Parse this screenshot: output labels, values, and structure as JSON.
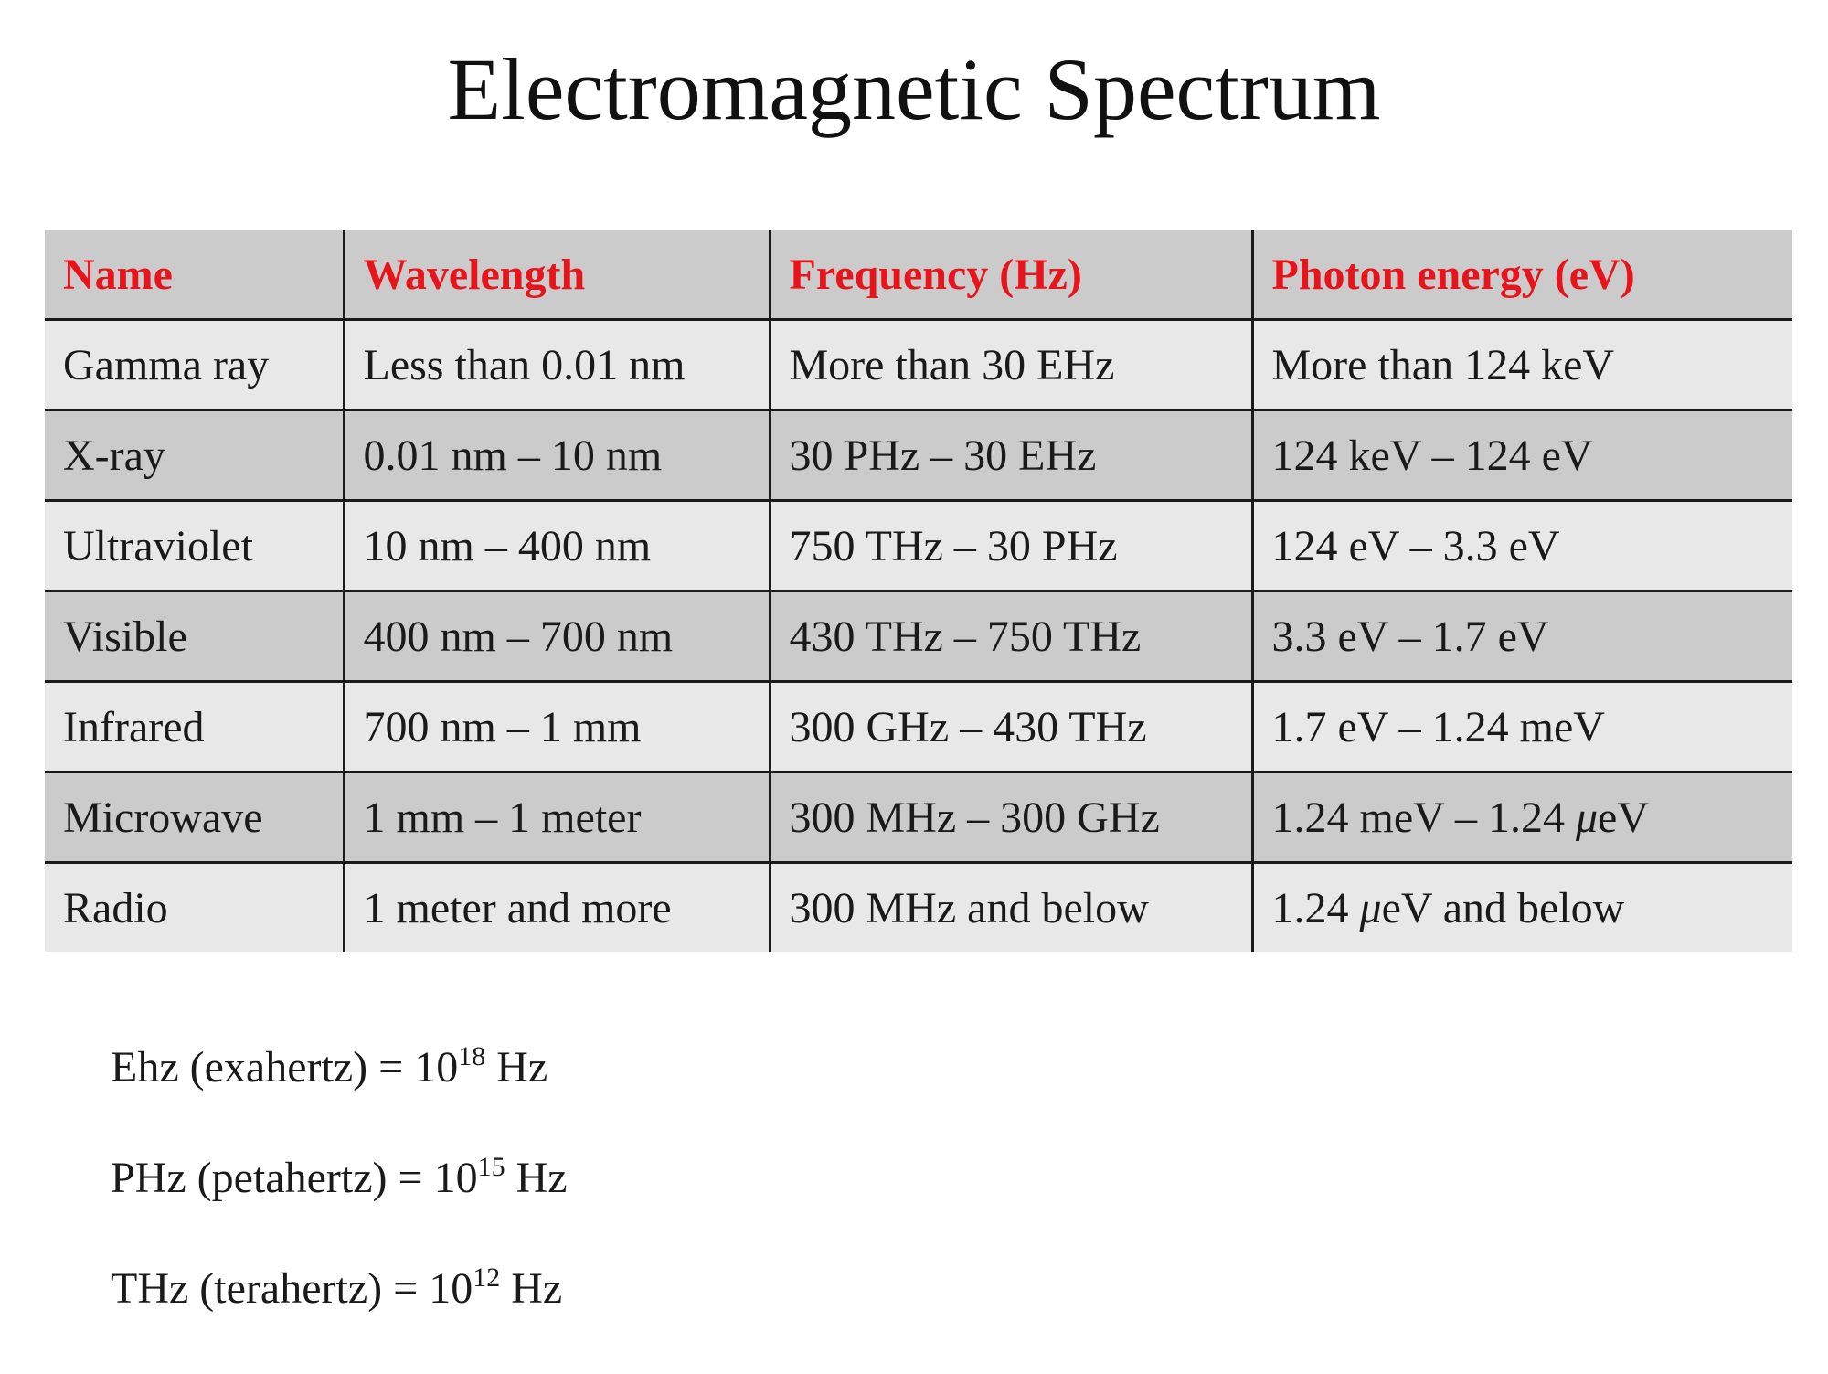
{
  "title": "Electromagnetic Spectrum",
  "table": {
    "headers": [
      "Name",
      "Wavelength",
      "Frequency (Hz)",
      "Photon energy (eV)"
    ],
    "rows": [
      [
        "Gamma ray",
        "Less than 0.01 nm",
        "More than 30 EHz",
        "More than 124 keV"
      ],
      [
        "X-ray",
        "0.01 nm – 10 nm",
        "30 PHz – 30 EHz",
        "124 keV – 124 eV"
      ],
      [
        "Ultraviolet",
        "10 nm – 400 nm",
        "750 THz – 30 PHz",
        "124 eV – 3.3 eV"
      ],
      [
        "Visible",
        "400 nm – 700 nm",
        "430 THz – 750 THz",
        "3.3 eV – 1.7 eV"
      ],
      [
        "Infrared",
        "700 nm – 1 mm",
        "300 GHz – 430 THz",
        "1.7 eV – 1.24 meV"
      ],
      [
        "Microwave",
        "1 mm – 1 meter",
        "300 MHz – 300 GHz",
        "1.24 meV – 1.24 μeV"
      ],
      [
        "Radio",
        "1 meter and more",
        "300 MHz and below",
        "1.24 μeV and below"
      ]
    ]
  },
  "notes": [
    {
      "prefix": "Ehz (exahertz) = 10",
      "exponent": "18",
      "suffix": " Hz"
    },
    {
      "prefix": "PHz (petahertz) = 10",
      "exponent": "15",
      "suffix": " Hz"
    },
    {
      "prefix": "THz (terahertz) = 10",
      "exponent": "12",
      "suffix": " Hz"
    }
  ],
  "colors": {
    "header_text": "#e8141b",
    "header_background": "#cbcbcb",
    "row_light": "#e8e8e8",
    "row_dark": "#cbcbcb",
    "grid_lines": "#1a1a1a"
  }
}
